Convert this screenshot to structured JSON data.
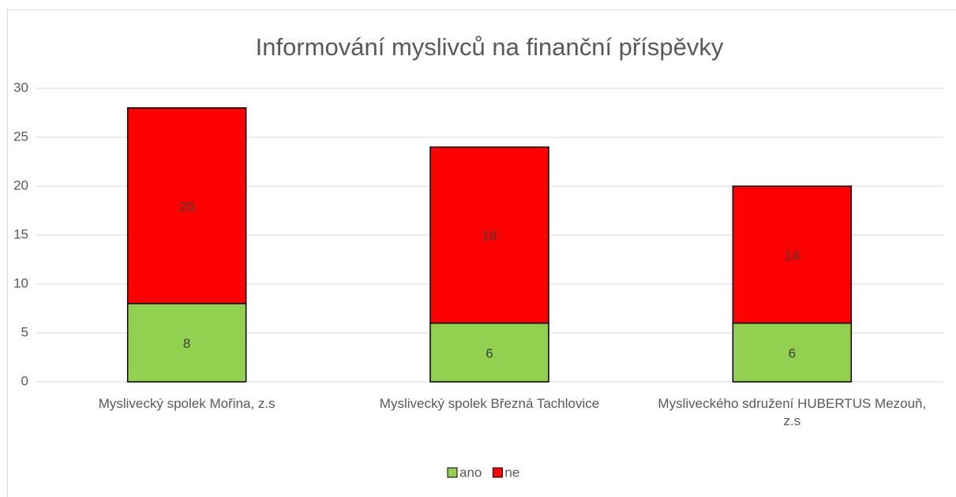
{
  "chart_data": {
    "type": "stacked_bar",
    "title": "Informování myslivců na finanční příspěvky",
    "categories": [
      "Myslivecký spolek Mořina, z.s",
      "Myslivecký spolek  Březná Tachlovice",
      "Mysliveckého sdružení HUBERTUS Mezouň, z.s"
    ],
    "series": [
      {
        "name": "ano",
        "color": "#92d050",
        "values": [
          8,
          6,
          6
        ]
      },
      {
        "name": "ne",
        "color": "#ff0000",
        "values": [
          20,
          18,
          14
        ]
      }
    ],
    "ylim": [
      0,
      30
    ],
    "yticks": [
      0,
      5,
      10,
      15,
      20,
      25,
      30
    ],
    "grid": true,
    "legend": "bottom"
  }
}
